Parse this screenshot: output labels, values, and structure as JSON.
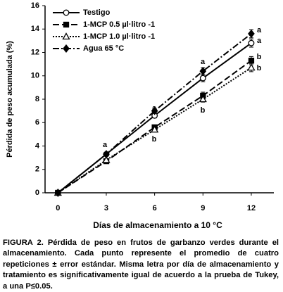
{
  "chart_data": {
    "type": "line",
    "ylabel": "Pérdida de peso acumulada (%)",
    "xlabel": "Días de almacenamiento a 10 °C",
    "x": [
      0,
      3,
      6,
      9,
      12
    ],
    "xlim": [
      -0.8,
      13.4
    ],
    "xticks": [
      0,
      3,
      6,
      9,
      12
    ],
    "ylim": [
      0,
      16
    ],
    "yticks": [
      0,
      2,
      4,
      6,
      8,
      10,
      12,
      14,
      16
    ],
    "legend": "upper left",
    "series": [
      {
        "name": "Testigo",
        "color": "#000000",
        "marker": "open-circle",
        "line_style": "solid",
        "values": [
          0,
          3.3,
          6.6,
          9.8,
          12.8
        ],
        "errors": [
          0,
          0.15,
          0.2,
          0.3,
          0.35
        ]
      },
      {
        "name": "1-MCP 0.5 µl·litro -1",
        "color": "#000000",
        "marker": "square",
        "line_style": "dash",
        "values": [
          0,
          2.7,
          5.6,
          8.3,
          11.3
        ],
        "errors": [
          0,
          0.1,
          0.2,
          0.3,
          0.35
        ]
      },
      {
        "name": "1-MCP 1.0 µl·litro -1",
        "color": "#000000",
        "marker": "open-triangle",
        "line_style": "dot",
        "values": [
          0,
          2.8,
          5.4,
          8.0,
          10.7
        ],
        "errors": [
          0,
          0.1,
          0.2,
          0.25,
          0.35
        ]
      },
      {
        "name": "Agua 65 °C",
        "color": "#000000",
        "marker": "diamond",
        "line_style": "dashdot",
        "values": [
          0,
          3.3,
          7.0,
          10.4,
          13.6
        ],
        "errors": [
          0,
          0.15,
          0.2,
          0.3,
          0.35
        ]
      }
    ],
    "annotations": [
      "a",
      "a",
      "a",
      "a",
      "a",
      "b",
      "b",
      "b",
      "b"
    ]
  },
  "caption": {
    "label": "FIGURA 2.",
    "text": "Pérdida de peso en frutos de garbanzo verdes durante el almacenamiento. Cada punto represente el promedio de cuatro repeticiones ± error estándar. Misma letra por día de almacenamiento y tratamiento es significativamente igual de acuerdo a la prueba de Tukey, a una P≤0.05."
  }
}
